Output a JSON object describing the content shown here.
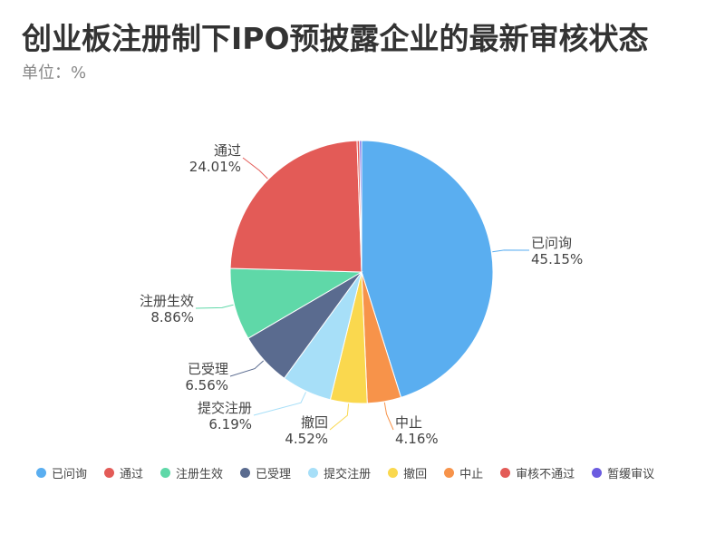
{
  "title": "创业板注册制下IPO预披露企业的最新审核状态",
  "subtitle": "单位：%",
  "chart_data": {
    "type": "pie",
    "title": "创业板注册制下IPO预披露企业的最新审核状态",
    "unit": "%",
    "legend_position": "bottom",
    "slices": [
      {
        "name": "已问询",
        "value": 45.15,
        "label": "45.15%",
        "color": "#5aaef0"
      },
      {
        "name": "中止",
        "value": 4.16,
        "label": "4.16%",
        "color": "#f7934a"
      },
      {
        "name": "撤回",
        "value": 4.52,
        "label": "4.52%",
        "color": "#fad84e"
      },
      {
        "name": "提交注册",
        "value": 6.19,
        "label": "6.19%",
        "color": "#a7dff8"
      },
      {
        "name": "已受理",
        "value": 6.56,
        "label": "6.56%",
        "color": "#5a6b8f"
      },
      {
        "name": "注册生效",
        "value": 8.86,
        "label": "8.86%",
        "color": "#5fd8a8"
      },
      {
        "name": "通过",
        "value": 24.01,
        "label": "24.01%",
        "color": "#e35b57"
      },
      {
        "name": "审核不通过",
        "value": 0.3,
        "label": "",
        "color": "#e35b57"
      },
      {
        "name": "暂缓审议",
        "value": 0.25,
        "label": "",
        "color": "#6b5ce0"
      }
    ],
    "legend": [
      {
        "name": "已问询",
        "color": "#5aaef0"
      },
      {
        "name": "通过",
        "color": "#e35b57"
      },
      {
        "name": "注册生效",
        "color": "#5fd8a8"
      },
      {
        "name": "已受理",
        "color": "#5a6b8f"
      },
      {
        "name": "提交注册",
        "color": "#a7dff8"
      },
      {
        "name": "撤回",
        "color": "#fad84e"
      },
      {
        "name": "中止",
        "color": "#f7934a"
      },
      {
        "name": "审核不通过",
        "color": "#e35b57"
      },
      {
        "name": "暂缓审议",
        "color": "#6b5ce0"
      }
    ]
  }
}
